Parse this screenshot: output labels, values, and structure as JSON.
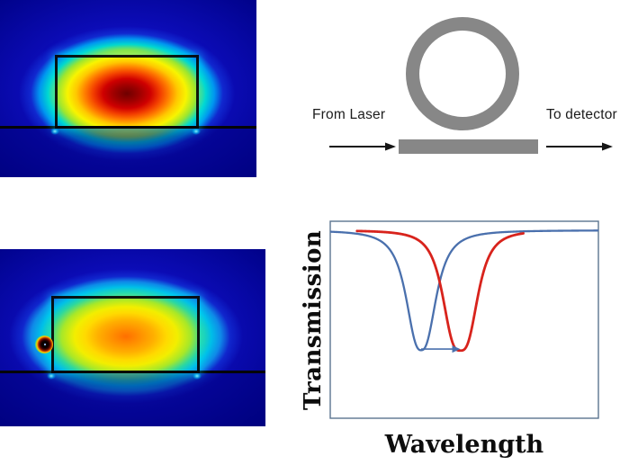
{
  "figure": {
    "background": "#ffffff",
    "schematic": {
      "from_laser_label": "From Laser",
      "to_detector_label": "To detector",
      "ring_color": "#878787",
      "bus_color": "#878787",
      "arrow_color": "#161616"
    },
    "mode_profile_top": {
      "colormap": "jet",
      "background_color": "#0a0ab2",
      "core_color": "#8b0000"
    },
    "mode_profile_bottom": {
      "colormap": "jet",
      "background_color": "#0a0ab2",
      "core_color": "#ff7a00",
      "particle_core_color": "#200000"
    }
  },
  "chart_data": {
    "type": "line",
    "title": "",
    "xlabel": "Wavelength",
    "ylabel": "Transmission",
    "x_range": [
      0,
      1
    ],
    "y_range": [
      0,
      1.048
    ],
    "grid": false,
    "legend": false,
    "frame_color": "#5b7590",
    "baseline_transmission": 1.0,
    "series": [
      {
        "name": "dip-blue",
        "color": "#4a70ad",
        "line_width": 2.3,
        "x_start": 0.003,
        "x_end": 0.997,
        "dip_center": 0.339,
        "dip_half_width": 0.062,
        "dip_exponent": 2.6,
        "min_transmission": 0.362
      },
      {
        "name": "dip-red",
        "color": "#d8231c",
        "line_width": 2.8,
        "x_start": 0.1,
        "x_end": 0.72,
        "dip_center": 0.485,
        "dip_half_width": 0.07,
        "dip_exponent": 3.0,
        "min_transmission": 0.36
      }
    ],
    "shift_arrow": {
      "from_x": 0.339,
      "to_x": 0.485,
      "at_transmission": 0.368,
      "color": "#4a70ad"
    }
  }
}
